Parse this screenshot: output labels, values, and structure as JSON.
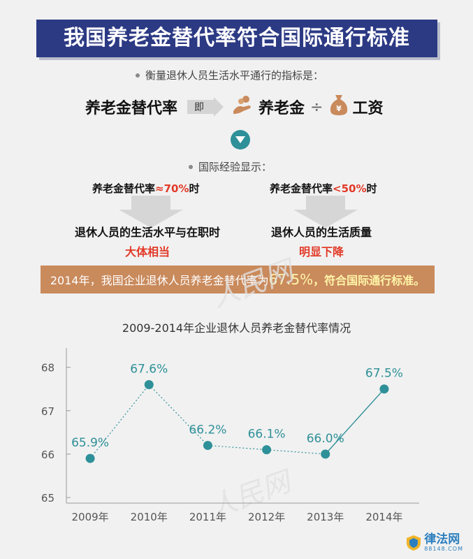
{
  "header": {
    "title": "我国养老金替代率符合国际通行标准"
  },
  "measure": {
    "text": "衡量退休人员生活水平通行的指标是："
  },
  "formula": {
    "lhs": "养老金替代率",
    "connector": "即",
    "term1": "养老金",
    "divide": "÷",
    "term2": "工资"
  },
  "experience": {
    "text": "国际经验显示："
  },
  "left_case": {
    "cond_prefix": "养老金替代率",
    "cond_value": "≈70%",
    "cond_suffix": "时",
    "result_line1": "退休人员的生活水平与在职时",
    "result_line2": "大体相当"
  },
  "right_case": {
    "cond_prefix": "养老金替代率",
    "cond_value": "<50%",
    "cond_suffix": "时",
    "result_line1": "退休人员的生活质量",
    "result_line2": "明显下降"
  },
  "summary": {
    "prefix": "2014年，我国企业退休人员养老金替代率为",
    "value": "67.5%",
    "suffix": "，符合国际通行标准。"
  },
  "watermark": "人民网",
  "logo": {
    "name": "律法网",
    "url": "88148.COM"
  },
  "colors": {
    "banner": "#2c3a84",
    "accent_red": "#e23a28",
    "teal": "#2e9098",
    "orange_bar": "#c98a5c"
  },
  "chart_data": {
    "type": "line",
    "title": "2009-2014年企业退休人员养老金替代率情况",
    "categories": [
      "2009年",
      "2010年",
      "2011年",
      "2012年",
      "2013年",
      "2014年"
    ],
    "values": [
      65.9,
      67.6,
      66.2,
      66.1,
      66.0,
      67.5
    ],
    "data_labels": [
      "65.9%",
      "67.6%",
      "66.2%",
      "66.1%",
      "66.0%",
      "67.5%"
    ],
    "yticks": [
      65,
      66,
      67,
      68
    ],
    "ylim": [
      65,
      68.3
    ],
    "xlabel": "",
    "ylabel": "",
    "grid": false,
    "line_style": "dotted",
    "segments_solid": [
      [
        4,
        5
      ]
    ]
  }
}
